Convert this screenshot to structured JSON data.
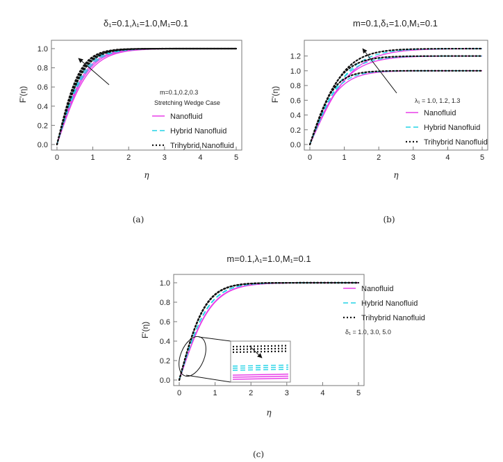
{
  "chart_data": [
    {
      "panel": "a",
      "type": "line",
      "title": "δ₁=0.1,λ₁=1.0,M₁=0.1",
      "xlabel": "η",
      "ylabel": "F'(η)",
      "xlim": [
        0,
        5
      ],
      "ylim": [
        0,
        1.0
      ],
      "xticks": [
        "0",
        "1",
        "2",
        "3",
        "4",
        "5"
      ],
      "yticks": [
        "0.0",
        "0.2",
        "0.4",
        "0.6",
        "0.8",
        "1.0"
      ],
      "grid": false,
      "legend_position": "right",
      "annotations": [
        "m=0.1,0.2,0.3",
        "Stretching Wedge Case"
      ],
      "caption": "(a)",
      "legend": [
        "Nanofluid",
        "Hybrid Nanofluid",
        "Trihybrid Nanofluid"
      ],
      "series": [
        {
          "name": "Nanofluid",
          "style": "solid",
          "color": "#e83ee8",
          "params": [
            {
              "k": 1.1,
              "asym": 1.0
            },
            {
              "k": 1.17,
              "asym": 1.0
            },
            {
              "k": 1.24,
              "asym": 1.0
            }
          ]
        },
        {
          "name": "Hybrid Nanofluid",
          "style": "dashed",
          "color": "#22d3e6",
          "params": [
            {
              "k": 1.22,
              "asym": 1.0
            },
            {
              "k": 1.3,
              "asym": 1.0
            },
            {
              "k": 1.38,
              "asym": 1.0
            }
          ]
        },
        {
          "name": "Trihybrid Nanofluid",
          "style": "dotted",
          "color": "#111111",
          "params": [
            {
              "k": 1.38,
              "asym": 1.0
            },
            {
              "k": 1.47,
              "asym": 1.0
            },
            {
              "k": 1.56,
              "asym": 1.0
            }
          ]
        }
      ]
    },
    {
      "panel": "b",
      "type": "line",
      "title": "m=0.1,δ₁=1.0,M₁=0.1",
      "xlabel": "η",
      "ylabel": "F'(η)",
      "xlim": [
        0,
        5
      ],
      "ylim": [
        0,
        1.3
      ],
      "xticks": [
        "0",
        "1",
        "2",
        "3",
        "4",
        "5"
      ],
      "yticks": [
        "0.0",
        "0.2",
        "0.4",
        "0.6",
        "0.8",
        "1.0",
        "1.2"
      ],
      "grid": false,
      "legend_position": "bottom-right",
      "annotations": [
        "λ₁ = 1.0, 1.2, 1.3"
      ],
      "caption": "(b)",
      "legend": [
        "Nanofluid",
        "Hybrid Nanofluid",
        "Trihybrid Nanofluid"
      ],
      "series": [
        {
          "name": "Nanofluid",
          "style": "solid",
          "color": "#e83ee8",
          "params": [
            {
              "k": 1.15,
              "asym": 1.0
            },
            {
              "k": 1.1,
              "asym": 1.2
            },
            {
              "k": 1.05,
              "asym": 1.3
            }
          ]
        },
        {
          "name": "Hybrid Nanofluid",
          "style": "dashed",
          "color": "#22d3e6",
          "params": [
            {
              "k": 1.26,
              "asym": 1.0
            },
            {
              "k": 1.2,
              "asym": 1.2
            },
            {
              "k": 1.15,
              "asym": 1.3
            }
          ]
        },
        {
          "name": "Trihybrid Nanofluid",
          "style": "dotted",
          "color": "#111111",
          "params": [
            {
              "k": 1.42,
              "asym": 1.0
            },
            {
              "k": 1.36,
              "asym": 1.2
            },
            {
              "k": 1.3,
              "asym": 1.3
            }
          ]
        }
      ]
    },
    {
      "panel": "c",
      "type": "line",
      "title": "m=0.1,λ₁=1.0,M₁=0.1",
      "xlabel": "η",
      "ylabel": "F'(η)",
      "xlim": [
        0,
        5
      ],
      "ylim": [
        0,
        1.0
      ],
      "xticks": [
        "0",
        "1",
        "2",
        "3",
        "4",
        "5"
      ],
      "yticks": [
        "0.0",
        "0.2",
        "0.4",
        "0.6",
        "0.8",
        "1.0"
      ],
      "grid": false,
      "legend_position": "right",
      "annotations": [
        "δ₁ = 1.0, 3.0, 5.0"
      ],
      "caption": "(c)",
      "legend": [
        "Nanofluid",
        "Hybrid Nanofluid",
        "Trihybrid Nanofluid"
      ],
      "series": [
        {
          "name": "Nanofluid",
          "style": "solid",
          "color": "#e83ee8",
          "params": [
            {
              "k": 1.1,
              "asym": 1.0
            },
            {
              "k": 1.11,
              "asym": 1.0
            },
            {
              "k": 1.12,
              "asym": 1.0
            }
          ]
        },
        {
          "name": "Hybrid Nanofluid",
          "style": "dashed",
          "color": "#22d3e6",
          "params": [
            {
              "k": 1.2,
              "asym": 1.0
            },
            {
              "k": 1.21,
              "asym": 1.0
            },
            {
              "k": 1.22,
              "asym": 1.0
            }
          ]
        },
        {
          "name": "Trihybrid Nanofluid",
          "style": "dotted",
          "color": "#111111",
          "params": [
            {
              "k": 1.36,
              "asym": 1.0
            },
            {
              "k": 1.37,
              "asym": 1.0
            },
            {
              "k": 1.38,
              "asym": 1.0
            }
          ]
        }
      ]
    }
  ]
}
